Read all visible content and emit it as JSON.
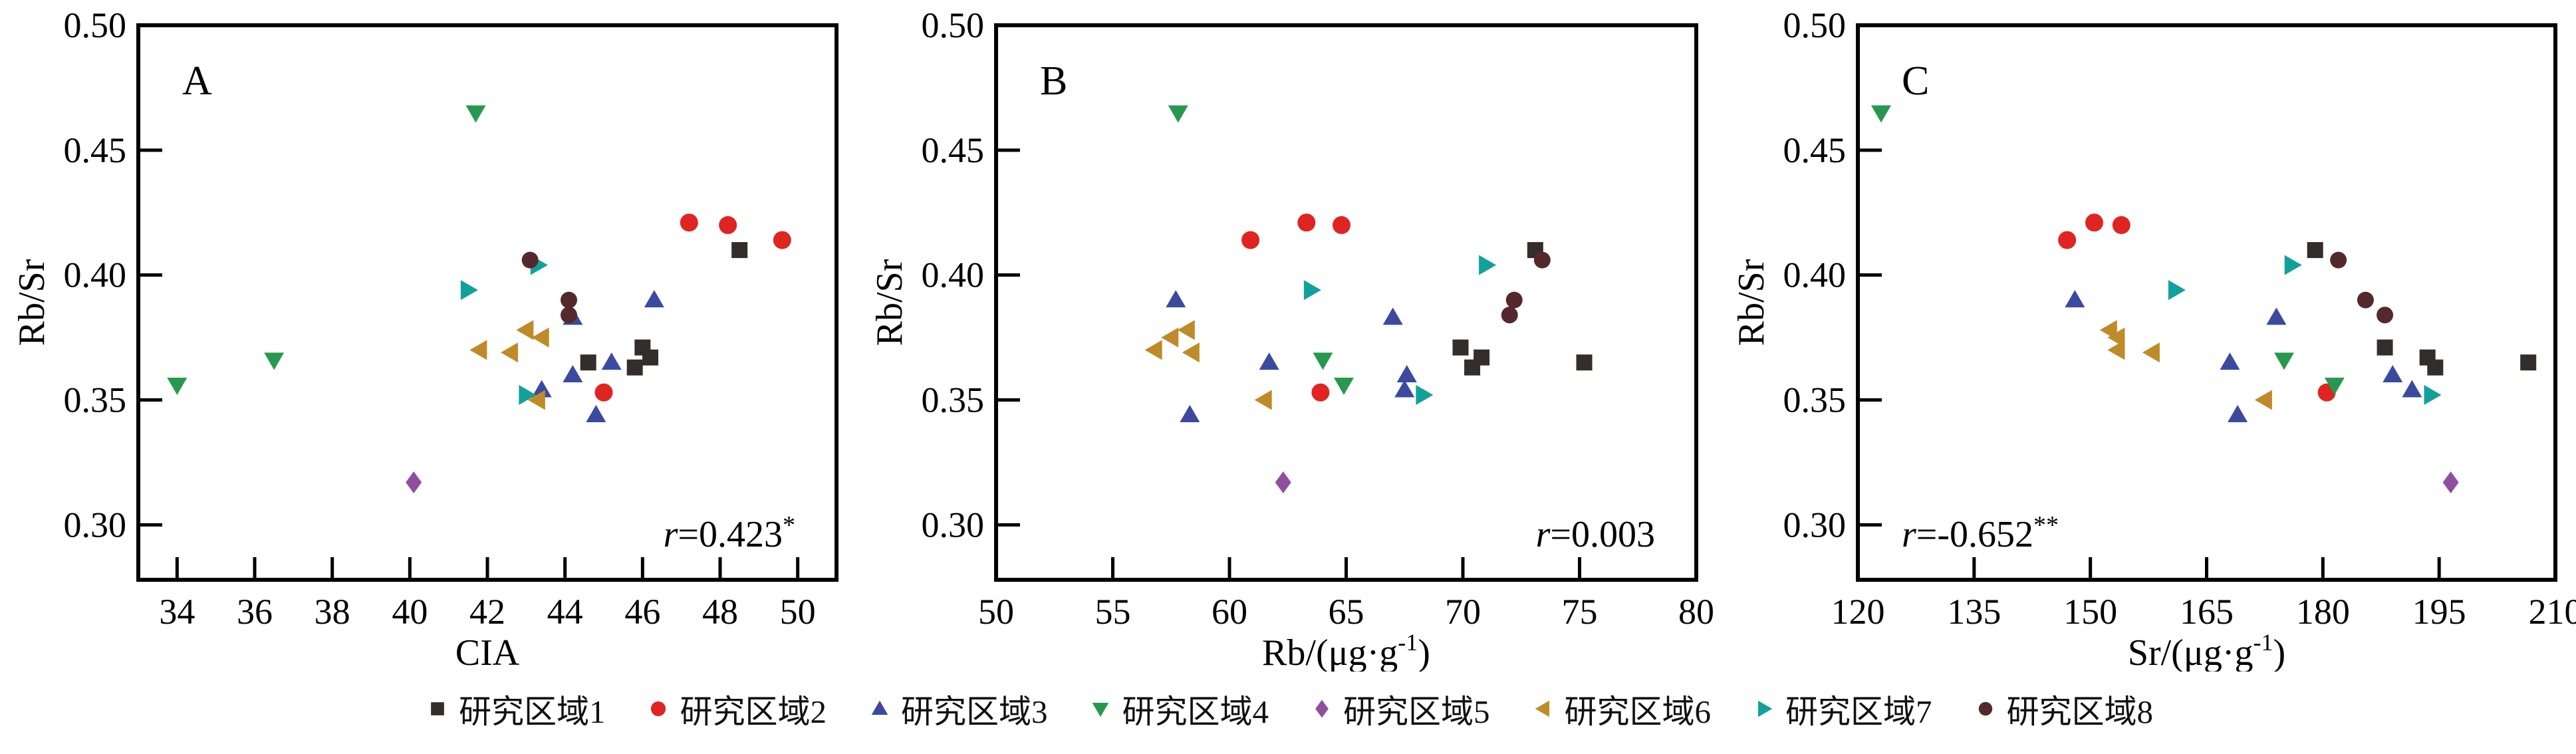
{
  "chart_data": {
    "type": "scatter",
    "layout": "three-panel-row",
    "legend_position": "bottom",
    "background": "#ffffff",
    "y_axis": {
      "label": "Rb/Sr",
      "min": 0.278,
      "max": 0.5,
      "tick_labels": [
        "0.30",
        "0.35",
        "0.40",
        "0.45",
        "0.50"
      ]
    },
    "panels": [
      {
        "letter": "A",
        "x_key": "cia",
        "x_label": {
          "text": "CIA",
          "sup": "",
          "suffix": ""
        },
        "x_min": 33,
        "x_max": 51,
        "x_ticks": [
          34,
          36,
          38,
          40,
          42,
          44,
          46,
          48,
          50
        ],
        "annotation": {
          "var": "r",
          "body": "=0.423",
          "stars": "*",
          "align": "right"
        }
      },
      {
        "letter": "B",
        "x_key": "rb",
        "x_label": {
          "text": "Rb/(μg·g",
          "sup": "-1",
          "suffix": ")"
        },
        "x_min": 50,
        "x_max": 80,
        "x_ticks": [
          50,
          55,
          60,
          65,
          70,
          75,
          80
        ],
        "annotation": {
          "var": "r",
          "body": "=0.003",
          "stars": "",
          "align": "right"
        }
      },
      {
        "letter": "C",
        "x_key": "sr",
        "x_label": {
          "text": "Sr/(μg·g",
          "sup": "-1",
          "suffix": ")"
        },
        "x_min": 120,
        "x_max": 210,
        "x_ticks": [
          120,
          135,
          150,
          165,
          180,
          195,
          210
        ],
        "annotation": {
          "var": "r",
          "body": "=-0.652",
          "stars": "**",
          "align": "left"
        }
      }
    ],
    "series": [
      {
        "name": "研究区域1",
        "marker": "square",
        "color": "#332e2b",
        "points": [
          {
            "cia": 48.5,
            "rb": 73.1,
            "sr": 179.0,
            "rbsr": 0.41
          },
          {
            "cia": 46.0,
            "rb": 69.9,
            "sr": 188.0,
            "rbsr": 0.371
          },
          {
            "cia": 46.2,
            "rb": 70.8,
            "sr": 193.5,
            "rbsr": 0.367
          },
          {
            "cia": 45.8,
            "rb": 70.4,
            "sr": 194.5,
            "rbsr": 0.363
          },
          {
            "cia": 44.6,
            "rb": 75.2,
            "sr": 206.5,
            "rbsr": 0.365
          }
        ]
      },
      {
        "name": "研究区域2",
        "marker": "circle",
        "color": "#e02422",
        "points": [
          {
            "cia": 47.2,
            "rb": 63.3,
            "sr": 150.5,
            "rbsr": 0.421
          },
          {
            "cia": 48.2,
            "rb": 64.8,
            "sr": 154.0,
            "rbsr": 0.42
          },
          {
            "cia": 49.6,
            "rb": 60.9,
            "sr": 147.0,
            "rbsr": 0.414
          },
          {
            "cia": 45.0,
            "rb": 63.9,
            "sr": 180.5,
            "rbsr": 0.353
          }
        ]
      },
      {
        "name": "研究区域3",
        "marker": "triangle-up",
        "color": "#3b4a9e",
        "points": [
          {
            "cia": 46.3,
            "rb": 57.7,
            "sr": 148.0,
            "rbsr": 0.39
          },
          {
            "cia": 44.2,
            "rb": 67.0,
            "sr": 174.0,
            "rbsr": 0.383
          },
          {
            "cia": 45.2,
            "rb": 61.7,
            "sr": 168.0,
            "rbsr": 0.365
          },
          {
            "cia": 44.2,
            "rb": 67.6,
            "sr": 189.0,
            "rbsr": 0.36
          },
          {
            "cia": 43.4,
            "rb": 67.5,
            "sr": 191.5,
            "rbsr": 0.354
          },
          {
            "cia": 44.8,
            "rb": 58.3,
            "sr": 169.0,
            "rbsr": 0.344
          }
        ]
      },
      {
        "name": "研究区域4",
        "marker": "triangle-down",
        "color": "#27994f",
        "points": [
          {
            "cia": 41.7,
            "rb": 57.8,
            "sr": 123.0,
            "rbsr": 0.465
          },
          {
            "cia": 36.5,
            "rb": 64.0,
            "sr": 175.0,
            "rbsr": 0.366
          },
          {
            "cia": 34.0,
            "rb": 64.9,
            "sr": 181.5,
            "rbsr": 0.356
          }
        ]
      },
      {
        "name": "研究区域5",
        "marker": "diamond",
        "color": "#8f4f9e",
        "points": [
          {
            "cia": 40.1,
            "rb": 62.3,
            "sr": 196.5,
            "rbsr": 0.317
          }
        ]
      },
      {
        "name": "研究区域6",
        "marker": "triangle-left",
        "color": "#bf8b28",
        "points": [
          {
            "cia": 43.0,
            "rb": 58.2,
            "sr": 152.5,
            "rbsr": 0.378
          },
          {
            "cia": 43.4,
            "rb": 57.5,
            "sr": 153.5,
            "rbsr": 0.375
          },
          {
            "cia": 41.8,
            "rb": 56.8,
            "sr": 153.5,
            "rbsr": 0.37
          },
          {
            "cia": 42.6,
            "rb": 58.4,
            "sr": 158.0,
            "rbsr": 0.369
          },
          {
            "cia": 43.3,
            "rb": 61.5,
            "sr": 172.5,
            "rbsr": 0.35
          }
        ]
      },
      {
        "name": "研究区域7",
        "marker": "triangle-right",
        "color": "#12a19a",
        "points": [
          {
            "cia": 43.3,
            "rb": 71.0,
            "sr": 176.0,
            "rbsr": 0.404
          },
          {
            "cia": 41.5,
            "rb": 63.5,
            "sr": 161.0,
            "rbsr": 0.394
          },
          {
            "cia": 43.0,
            "rb": 68.3,
            "sr": 194.0,
            "rbsr": 0.352
          }
        ]
      },
      {
        "name": "研究区域8",
        "marker": "circle-small",
        "color": "#54292b",
        "points": [
          {
            "cia": 43.1,
            "rb": 73.4,
            "sr": 182.0,
            "rbsr": 0.406
          },
          {
            "cia": 44.1,
            "rb": 72.2,
            "sr": 185.5,
            "rbsr": 0.39
          },
          {
            "cia": 44.1,
            "rb": 72.0,
            "sr": 188.0,
            "rbsr": 0.384
          }
        ]
      }
    ]
  }
}
